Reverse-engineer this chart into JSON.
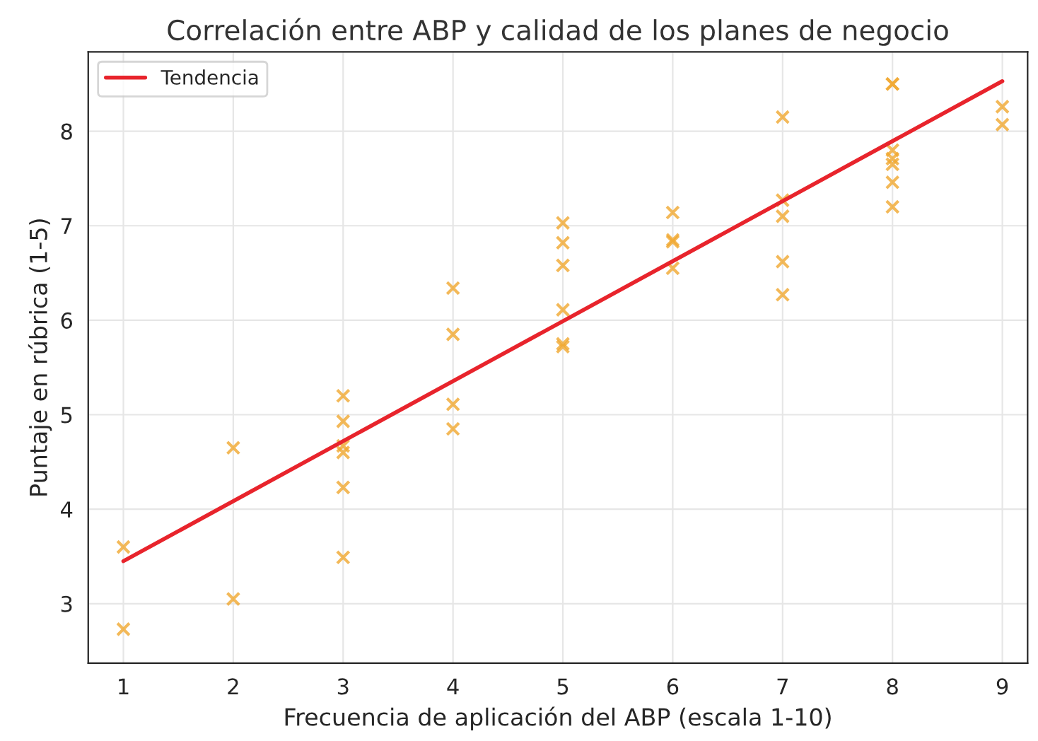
{
  "chart_data": {
    "type": "scatter",
    "title": "Correlación entre ABP y calidad de los planes de negocio",
    "xlabel": "Frecuencia de aplicación del ABP (escala 1-10)",
    "ylabel": "Puntaje en rúbrica (1-5)",
    "xlim": [
      0.68,
      9.23
    ],
    "ylim": [
      2.37,
      8.84
    ],
    "xticks": [
      1,
      2,
      3,
      4,
      5,
      6,
      7,
      8,
      9
    ],
    "yticks": [
      3,
      4,
      5,
      6,
      7,
      8
    ],
    "grid": true,
    "legend": "top left",
    "series": [
      {
        "marker": "cross",
        "color": "#f0a830",
        "x": [
          1,
          1,
          2,
          2,
          3,
          3,
          3,
          3,
          3,
          3,
          4,
          4,
          4,
          4,
          5,
          5,
          5,
          5,
          5,
          5,
          6,
          6,
          6,
          6,
          7,
          7,
          7,
          7,
          7,
          8,
          8,
          8,
          8,
          8,
          8,
          8,
          9,
          9
        ],
        "values": [
          3.6,
          2.73,
          4.65,
          3.05,
          5.2,
          4.93,
          4.67,
          4.6,
          4.23,
          3.49,
          6.34,
          5.85,
          5.11,
          4.85,
          7.03,
          6.82,
          6.58,
          6.11,
          5.75,
          5.72,
          7.14,
          6.85,
          6.83,
          6.55,
          8.15,
          7.27,
          7.1,
          6.62,
          6.27,
          8.5,
          8.5,
          7.8,
          7.71,
          7.65,
          7.46,
          7.2,
          8.26,
          8.07
        ]
      },
      {
        "type": "line",
        "name": "Tendencia",
        "color": "#e8242c",
        "x": [
          1,
          9
        ],
        "values": [
          3.45,
          8.53
        ],
        "line_style": "solid",
        "marker": "none"
      }
    ]
  }
}
